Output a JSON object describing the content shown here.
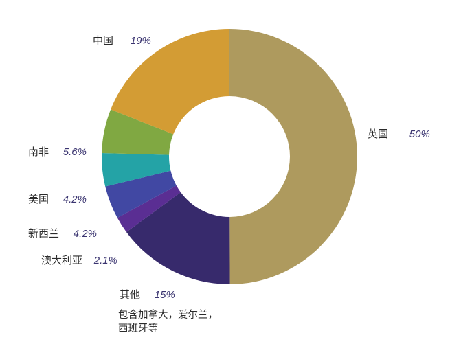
{
  "chart_data": {
    "type": "pie",
    "subtype": "donut",
    "title": "",
    "categories": [
      "英国",
      "其他",
      "澳大利亚",
      "新西兰",
      "美国",
      "南非",
      "中国"
    ],
    "values": [
      50,
      15,
      2.1,
      4.2,
      4.2,
      5.6,
      19
    ],
    "unit": "%",
    "colors": [
      "#ae9a5e",
      "#372a6c",
      "#5a2e93",
      "#4148a3",
      "#24a3a6",
      "#80a842",
      "#d39c34"
    ],
    "start_angle_deg": 0,
    "direction": "clockwise",
    "inner_radius_ratio": 0.47,
    "annotations": [
      {
        "category": "其他",
        "text": "包含加拿大，爱尔兰，西班牙等"
      }
    ]
  },
  "labels": {
    "uk": {
      "name": "英国",
      "pct": "50%"
    },
    "china": {
      "name": "中国",
      "pct": "19%"
    },
    "south_africa": {
      "name": "南非",
      "pct": "5.6%"
    },
    "usa": {
      "name": "美国",
      "pct": "4.2%"
    },
    "new_zealand": {
      "name": "新西兰",
      "pct": "4.2%"
    },
    "australia": {
      "name": "澳大利亚",
      "pct": "2.1%"
    },
    "other": {
      "name": "其他",
      "pct": "15%"
    }
  },
  "note": {
    "line1": "包含加拿大，爱尔兰，",
    "line2": "西班牙等"
  }
}
